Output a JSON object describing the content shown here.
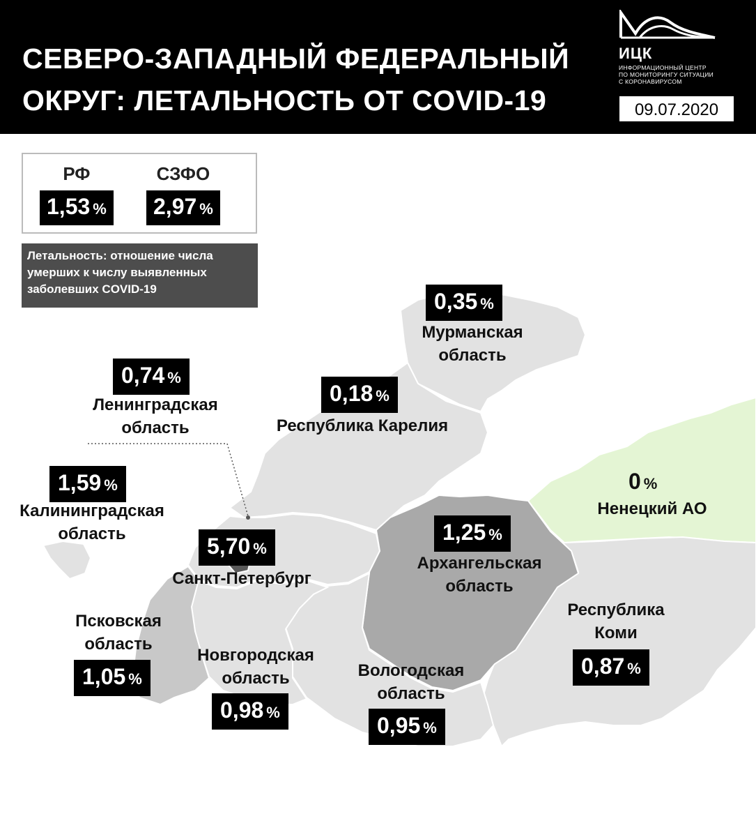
{
  "header": {
    "title_line1": "СЕВЕРО-ЗАПАДНЫЙ ФЕДЕРАЛЬНЫЙ",
    "title_line2": "ОКРУГ: ЛЕТАЛЬНОСТЬ ОТ COVID-19",
    "logo_name": "ИЦК",
    "logo_sub_line1": "ИНФОРМАЦИОННЫЙ ЦЕНТР",
    "logo_sub_line2": "ПО МОНИТОРИНГУ СИТУАЦИИ",
    "logo_sub_line3": "С КОРОНАВИРУСОМ",
    "date": "09.07.2020"
  },
  "summary": {
    "rf_label": "РФ",
    "rf_value": "1,53",
    "szfo_label": "СЗФО",
    "szfo_value": "2,97",
    "unit": "%"
  },
  "note": {
    "line1": "Летальность: отношение числа",
    "line2": "умерших к числу выявленных",
    "line3": "заболевших COVID-19"
  },
  "regions": {
    "murmansk": {
      "value": "0,35",
      "name1": "Мурманская",
      "name2": "область"
    },
    "leningrad": {
      "value": "0,74",
      "name1": "Ленинградская",
      "name2": "область"
    },
    "karelia": {
      "value": "0,18",
      "name1": "Республика Карелия"
    },
    "kaliningrad": {
      "value": "1,59",
      "name1": "Калининградская",
      "name2": "область"
    },
    "nenets": {
      "value": "0",
      "name1": "Ненецкий АО"
    },
    "arkhangelsk": {
      "value": "1,25",
      "name1": "Архангельская",
      "name2": "область"
    },
    "spb": {
      "value": "5,70",
      "name1": "Санкт-Петербург"
    },
    "pskov": {
      "value": "1,05",
      "name1": "Псковская",
      "name2": "область"
    },
    "novgorod": {
      "value": "0,98",
      "name1": "Новгородская",
      "name2": "область"
    },
    "vologda": {
      "value": "0,95",
      "name1": "Вологодская",
      "name2": "область"
    },
    "komi": {
      "value": "0,87",
      "name1": "Республика",
      "name2": "Коми"
    }
  },
  "colors": {
    "header_bg": "#000000",
    "value_box_bg": "#000000",
    "note_bg": "#4d4d4d",
    "region_light": "#e2e2e2",
    "region_mid": "#c8c8c8",
    "region_dark": "#a9a9a9",
    "region_darkest": "#5a5a5a",
    "nenets_green": "#e4f5d4"
  }
}
